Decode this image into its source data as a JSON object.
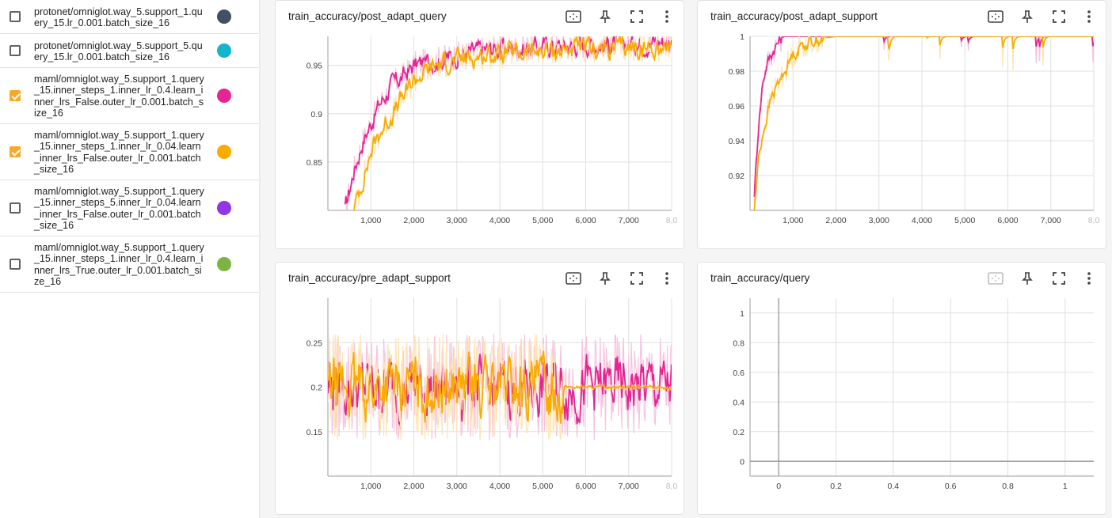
{
  "runs": [
    {
      "label": "protonet/omniglot.way_5.support_1.query_15.lr_0.001.batch_size_16",
      "checked": false,
      "color": "#425066"
    },
    {
      "label": "protonet/omniglot.way_5.support_5.query_15.lr_0.001.batch_size_16",
      "checked": false,
      "color": "#12b5cb"
    },
    {
      "label": "maml/omniglot.way_5.support_1.query_15.inner_steps_1.inner_lr_0.4.learn_inner_lrs_False.outer_lr_0.001.batch_size_16",
      "checked": true,
      "color": "#e52592"
    },
    {
      "label": "maml/omniglot.way_5.support_1.query_15.inner_steps_1.inner_lr_0.04.learn_inner_lrs_False.outer_lr_0.001.batch_size_16",
      "checked": true,
      "color": "#f9ab00"
    },
    {
      "label": "maml/omniglot.way_5.support_1.query_15.inner_steps_5.inner_lr_0.04.learn_inner_lrs_False.outer_lr_0.001.batch_size_16",
      "checked": false,
      "color": "#9334e6"
    },
    {
      "label": "maml/omniglot.way_5.support_1.query_15.inner_steps_1.inner_lr_0.4.learn_inner_lrs_True.outer_lr_0.001.batch_size_16",
      "checked": false,
      "color": "#7cb342"
    }
  ],
  "icons": [
    "fit-domain-icon",
    "pin-icon",
    "fullscreen-icon",
    "more-vert-icon"
  ],
  "colors": {
    "pink": "#e52592",
    "orange": "#f9ab00",
    "pink_light": "#f6c3df",
    "orange_light": "#fde5b3"
  },
  "chart_data": [
    {
      "type": "line",
      "title": "train_accuracy/post_adapt_query",
      "x_ticks": [
        "1,000",
        "2,000",
        "3,000",
        "4,000",
        "5,000",
        "6,000",
        "7,000",
        "8,0"
      ],
      "y_ticks": [
        "0.95",
        "0.9",
        "0.85"
      ],
      "xlim": [
        0,
        8000
      ],
      "ylim": [
        0.8,
        0.98
      ],
      "series": [
        {
          "color": "#e52592",
          "x": [
            400,
            600,
            800,
            1000,
            1200,
            1500,
            1800,
            2000,
            2500,
            3000,
            3500,
            4000,
            4500,
            5000,
            5500,
            6000,
            6500,
            7000,
            7500,
            8000
          ],
          "y": [
            0.8,
            0.84,
            0.87,
            0.89,
            0.91,
            0.93,
            0.94,
            0.95,
            0.955,
            0.96,
            0.965,
            0.968,
            0.968,
            0.97,
            0.97,
            0.972,
            0.972,
            0.973,
            0.974,
            0.976
          ]
        },
        {
          "color": "#f9ab00",
          "x": [
            600,
            800,
            1000,
            1200,
            1500,
            1800,
            2000,
            2500,
            3000,
            3500,
            4000,
            4500,
            5000,
            5500,
            6000,
            6500,
            7000,
            7500,
            8000
          ],
          "y": [
            0.8,
            0.83,
            0.86,
            0.88,
            0.9,
            0.92,
            0.935,
            0.95,
            0.955,
            0.96,
            0.962,
            0.963,
            0.965,
            0.966,
            0.967,
            0.967,
            0.968,
            0.968,
            0.97
          ]
        }
      ]
    },
    {
      "type": "line",
      "title": "train_accuracy/post_adapt_support",
      "x_ticks": [
        "1,000",
        "2,000",
        "3,000",
        "4,000",
        "5,000",
        "6,000",
        "7,000",
        "8,0"
      ],
      "y_ticks": [
        "1",
        "0.98",
        "0.96",
        "0.94",
        "0.92"
      ],
      "xlim": [
        0,
        8000
      ],
      "ylim": [
        0.9,
        1.0
      ],
      "series": [
        {
          "color": "#e52592",
          "x": [
            100,
            200,
            300,
            400,
            500,
            600,
            700,
            800,
            1000,
            2000,
            3000,
            4000,
            5000,
            6000,
            7000,
            8000
          ],
          "y": [
            0.91,
            0.95,
            0.975,
            0.985,
            0.99,
            0.995,
            0.998,
            1,
            1,
            1,
            1,
            1,
            1,
            1,
            1,
            1
          ]
        },
        {
          "color": "#f9ab00",
          "x": [
            100,
            200,
            300,
            400,
            500,
            600,
            700,
            800,
            900,
            1000,
            1200,
            1500,
            2000,
            3000,
            4000,
            5000,
            6000,
            7000,
            8000
          ],
          "y": [
            0.9,
            0.93,
            0.945,
            0.955,
            0.965,
            0.97,
            0.975,
            0.98,
            0.985,
            0.99,
            0.995,
            0.998,
            1,
            1,
            1,
            1,
            1,
            1,
            1
          ]
        }
      ]
    },
    {
      "type": "line",
      "title": "train_accuracy/pre_adapt_support",
      "x_ticks": [
        "1,000",
        "2,000",
        "3,000",
        "4,000",
        "5,000",
        "6,000",
        "7,000",
        "8,0"
      ],
      "y_ticks": [
        "0.25",
        "0.2",
        "0.15"
      ],
      "xlim": [
        0,
        8000
      ],
      "ylim": [
        0.1,
        0.3
      ],
      "series": [
        {
          "color": "#e52592",
          "x": [
            0,
            500,
            1000,
            1500,
            2000,
            2500,
            3000,
            3500,
            4000,
            4500,
            5000,
            5500,
            6000,
            6500,
            7000,
            7500,
            8000
          ],
          "y": [
            0.2,
            0.2,
            0.2,
            0.2,
            0.2,
            0.2,
            0.2,
            0.2,
            0.2,
            0.2,
            0.2,
            0.2,
            0.2,
            0.2,
            0.2,
            0.2,
            0.2
          ]
        },
        {
          "color": "#f9ab00",
          "x": [
            0,
            500,
            1000,
            1500,
            2000,
            2500,
            3000,
            3500,
            4000,
            4500,
            5000,
            5500,
            6000,
            6500,
            7000,
            7500,
            8000
          ],
          "y": [
            0.2,
            0.2,
            0.2,
            0.2,
            0.2,
            0.2,
            0.2,
            0.2,
            0.2,
            0.2,
            0.2,
            0.2,
            0.2,
            0.2,
            0.2,
            0.2,
            0.198
          ]
        }
      ]
    },
    {
      "type": "line",
      "title": "train_accuracy/query",
      "x_ticks": [
        "0",
        "0.2",
        "0.4",
        "0.6",
        "0.8",
        "1"
      ],
      "y_ticks": [
        "1",
        "0.8",
        "0.6",
        "0.4",
        "0.2",
        "0"
      ],
      "xlim": [
        -0.1,
        1.1
      ],
      "ylim": [
        -0.1,
        1.1
      ],
      "series": []
    }
  ]
}
